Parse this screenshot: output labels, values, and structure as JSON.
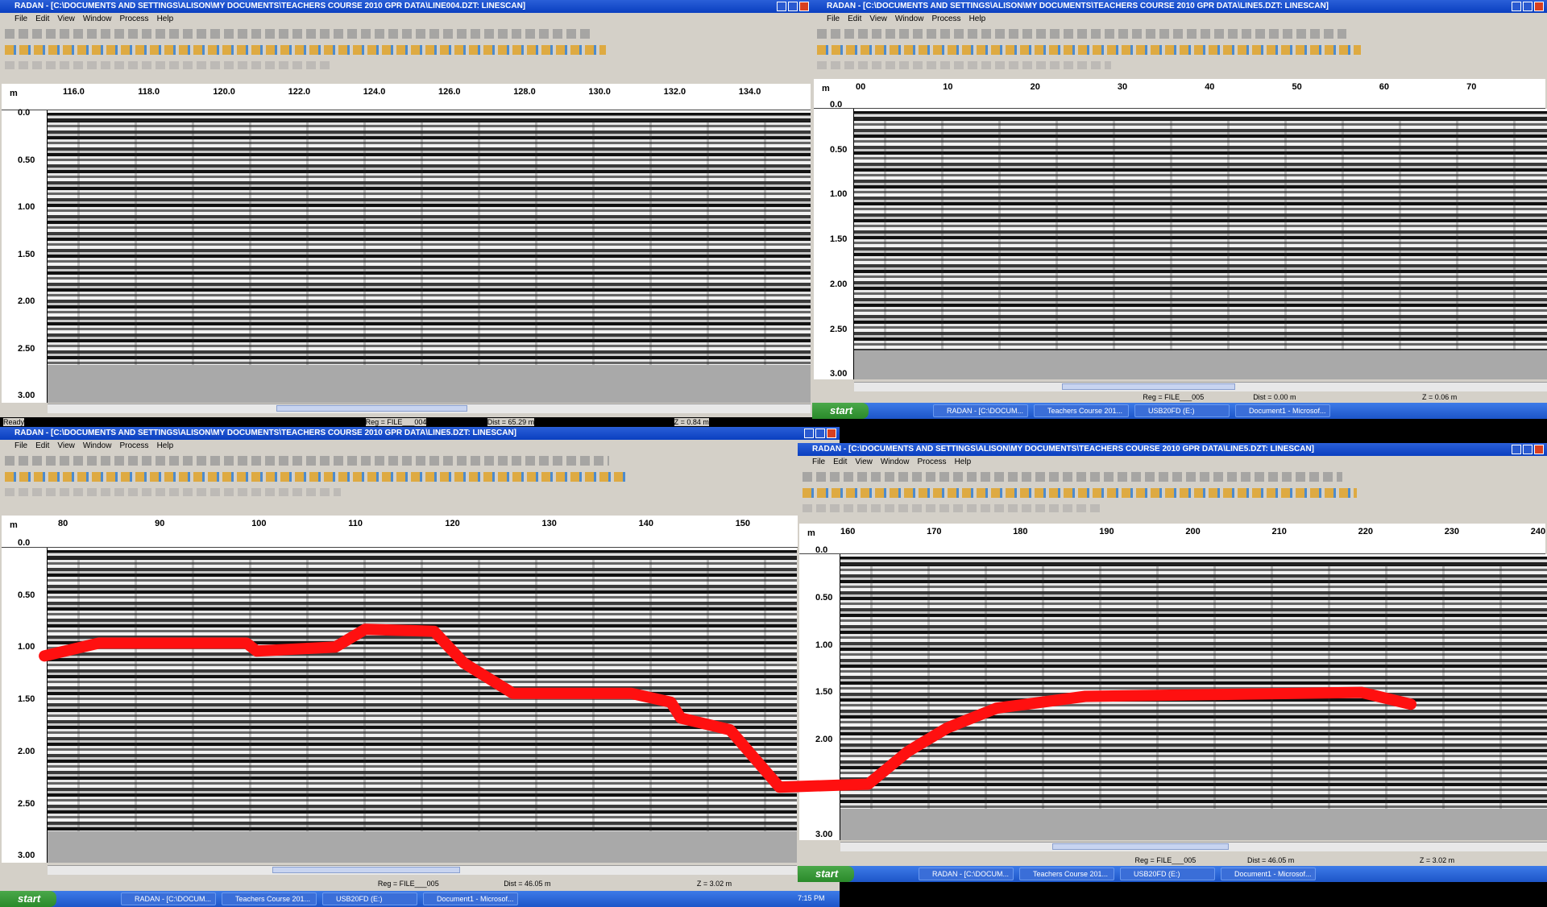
{
  "windows": [
    {
      "title": "RADAN - [C:\\DOCUMENTS AND SETTINGS\\ALISON\\MY DOCUMENTS\\TEACHERS COURSE 2010 GPR DATA\\LINE004.DZT:  LINESCAN]",
      "menu": [
        "File",
        "Edit",
        "View",
        "Window",
        "Process",
        "Help"
      ],
      "depth_unit": "m",
      "x_ticks": [
        "116.0",
        "118.0",
        "120.0",
        "122.0",
        "124.0",
        "126.0",
        "128.0",
        "130.0",
        "132.0",
        "134.0"
      ],
      "depth_ticks": [
        "0.0",
        "0.50",
        "1.00",
        "1.50",
        "2.00",
        "2.50",
        "3.00"
      ],
      "status": [
        "Ready",
        "Reg = FILE___004",
        "Dist = 65.29 m",
        "Z = 0.84 m"
      ]
    },
    {
      "title": "RADAN - [C:\\DOCUMENTS AND SETTINGS\\ALISON\\MY DOCUMENTS\\TEACHERS COURSE 2010 GPR DATA\\LINE5.DZT:  LINESCAN]",
      "menu": [
        "File",
        "Edit",
        "View",
        "Window",
        "Process",
        "Help"
      ],
      "depth_unit": "m",
      "x_ticks": [
        "00",
        "10",
        "20",
        "30",
        "40",
        "50",
        "60",
        "70"
      ],
      "depth_ticks": [
        "0.0",
        "0.50",
        "1.00",
        "1.50",
        "2.00",
        "2.50",
        "3.00"
      ],
      "status": [
        "Reg = FILE___005",
        "Dist = 0.00 m",
        "Z = 0.06 m"
      ],
      "taskbar": [
        "start",
        "RADAN - [C:\\DOCUM...",
        "Teachers Course 201...",
        "USB20FD (E:)",
        "Document1 - Microsof..."
      ]
    },
    {
      "title": "RADAN - [C:\\DOCUMENTS AND SETTINGS\\ALISON\\MY DOCUMENTS\\TEACHERS COURSE 2010 GPR DATA\\LINE5.DZT:  LINESCAN]",
      "menu": [
        "File",
        "Edit",
        "View",
        "Window",
        "Process",
        "Help"
      ],
      "depth_unit": "m",
      "x_ticks": [
        "80",
        "90",
        "100",
        "110",
        "120",
        "130",
        "140",
        "150"
      ],
      "depth_ticks": [
        "0.0",
        "0.50",
        "1.00",
        "1.50",
        "2.00",
        "2.50",
        "3.00"
      ],
      "status": [
        "Reg = FILE___005",
        "Dist = 46.05 m",
        "Z = 3.02 m"
      ],
      "taskbar": [
        "start",
        "RADAN - [C:\\DOCUM...",
        "Teachers Course 201...",
        "USB20FD (E:)",
        "Document1 - Microsof..."
      ],
      "clock": "7:15 PM"
    },
    {
      "title": "RADAN - [C:\\DOCUMENTS AND SETTINGS\\ALISON\\MY DOCUMENTS\\TEACHERS COURSE 2010 GPR DATA\\LINE5.DZT:  LINESCAN]",
      "menu": [
        "File",
        "Edit",
        "View",
        "Window",
        "Process",
        "Help"
      ],
      "depth_unit": "m",
      "x_ticks": [
        "160",
        "170",
        "180",
        "190",
        "200",
        "210",
        "220",
        "230",
        "240"
      ],
      "depth_ticks": [
        "0.0",
        "0.50",
        "1.00",
        "1.50",
        "2.00",
        "2.50",
        "3.00"
      ],
      "status": [
        "Reg = FILE___005",
        "Dist = 46.05 m",
        "Z = 3.02 m"
      ],
      "taskbar": [
        "start",
        "RADAN - [C:\\DOCUM...",
        "Teachers Course 201...",
        "USB20FD (E:)",
        "Document1 - Microsof..."
      ]
    }
  ]
}
